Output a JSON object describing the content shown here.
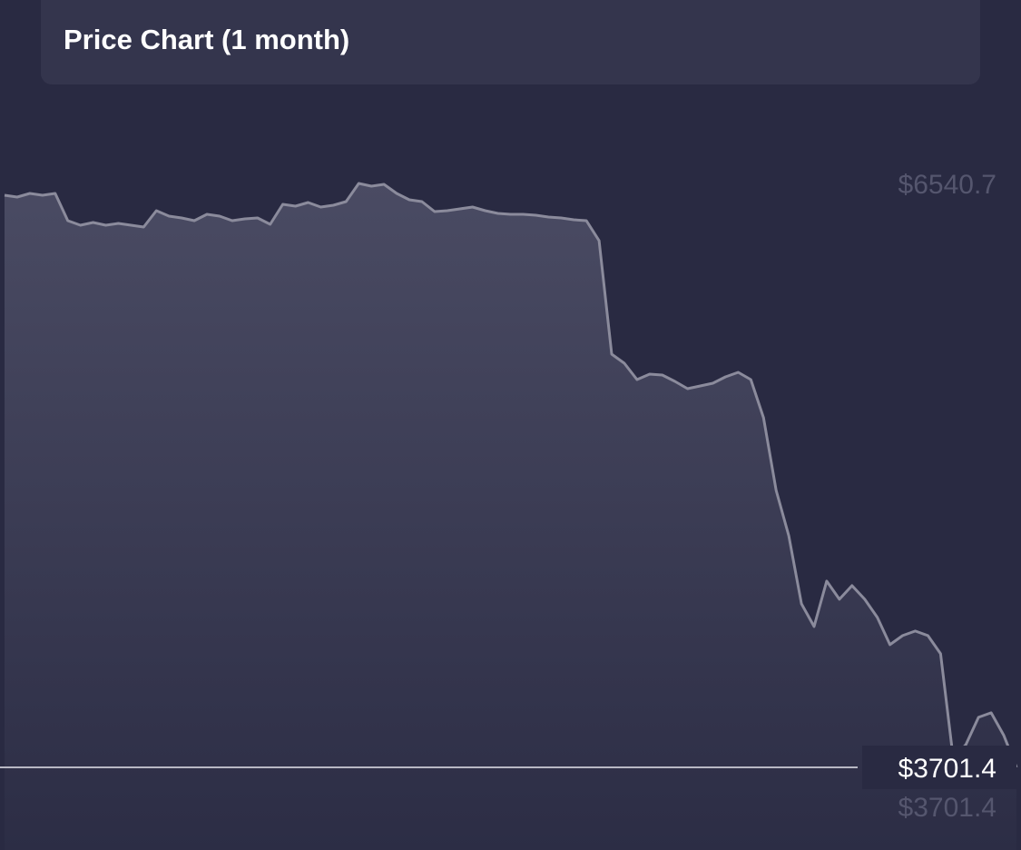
{
  "chart_data": {
    "type": "area",
    "title": "Price Chart (1 month)",
    "values": [
      6483.3,
      6474.5,
      6492.1,
      6483.3,
      6492.1,
      6359.7,
      6337.6,
      6350.9,
      6337.6,
      6346.4,
      6337.6,
      6328.8,
      6408.2,
      6381.8,
      6372.9,
      6359.7,
      6390.6,
      6381.8,
      6359.7,
      6368.5,
      6372.9,
      6342.0,
      6439.2,
      6430.3,
      6448.0,
      6425.9,
      6434.7,
      6452.4,
      6540.7,
      6527.5,
      6536.3,
      6492.1,
      6461.2,
      6452.4,
      6403.8,
      6408.2,
      6417.1,
      6425.9,
      6408.2,
      6395.0,
      6390.6,
      6390.6,
      6386.2,
      6377.3,
      6372.9,
      6364.1,
      6359.7,
      6262.6,
      5710.7,
      5666.5,
      5587.1,
      5613.5,
      5609.1,
      5578.2,
      5542.9,
      5556.2,
      5569.4,
      5600.3,
      5622.4,
      5587.1,
      5401.6,
      5048.4,
      4827.7,
      4496.6,
      4386.2,
      4606.9,
      4518.6,
      4584.9,
      4518.6,
      4430.3,
      4297.9,
      4342.0,
      4364.1,
      4342.0,
      4253.7,
      3746.0,
      3812.2,
      3944.7,
      3966.8,
      3856.4,
      3701.4
    ],
    "color": "#8b8b9c",
    "ylim": [
      3701.4,
      6540.7
    ],
    "yticks": [
      {
        "value": 6540.7,
        "label": "$6540.7"
      },
      {
        "value": 3701.4,
        "label": "$3701.4"
      }
    ],
    "current_price": {
      "value": 3701.4,
      "label": "$3701.4"
    }
  }
}
